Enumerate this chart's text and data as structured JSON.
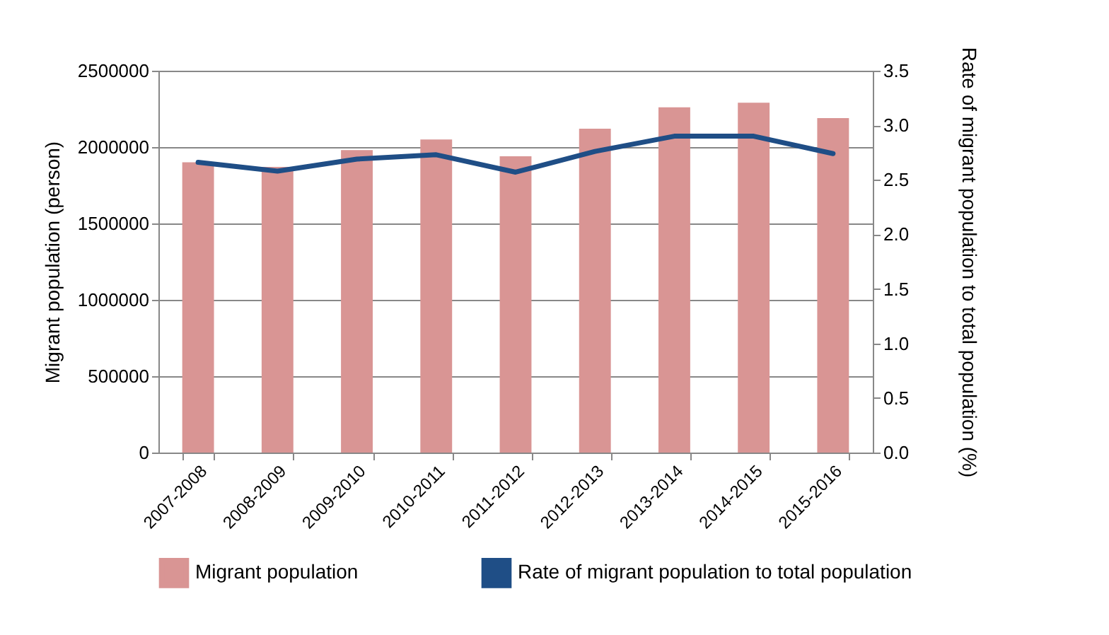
{
  "chart_data": {
    "type": "bar",
    "ylabel": "Migrant population  (person)",
    "y2label": "Rate of migrant population to total population  (%)",
    "categories": [
      "2007-2008",
      "2008-2009",
      "2009-2010",
      "2010-2011",
      "2011-2012",
      "2012-2013",
      "2013-2014",
      "2014-2015",
      "2015-2016"
    ],
    "series": [
      {
        "name": "Migrant population",
        "color": "#d99594",
        "values": [
          1900000,
          1870000,
          1980000,
          2050000,
          1940000,
          2120000,
          2260000,
          2290000,
          2190000
        ]
      },
      {
        "name": "Rate of migrant population to total population",
        "type": "line",
        "axis": "y2",
        "color": "#1f4e86",
        "values": [
          2.66,
          2.58,
          2.69,
          2.73,
          2.57,
          2.76,
          2.9,
          2.9,
          2.74
        ]
      }
    ],
    "ylim": [
      0,
      2500000
    ],
    "yticks": [
      0,
      500000,
      1000000,
      1500000,
      2000000,
      2500000
    ],
    "y2lim": [
      0,
      3.5
    ],
    "y2ticks": [
      {
        "value": 0,
        "label": "0.0"
      },
      {
        "value": 0.5,
        "label": "0.5"
      },
      {
        "value": 1,
        "label": "1.0"
      },
      {
        "value": 1.5,
        "label": "1.5"
      },
      {
        "value": 2,
        "label": "2.0"
      },
      {
        "value": 2.5,
        "label": "2.5"
      },
      {
        "value": 3,
        "label": "3.0"
      },
      {
        "value": 3.5,
        "label": "3.5"
      }
    ],
    "grid": "y",
    "legend": "bottom"
  }
}
